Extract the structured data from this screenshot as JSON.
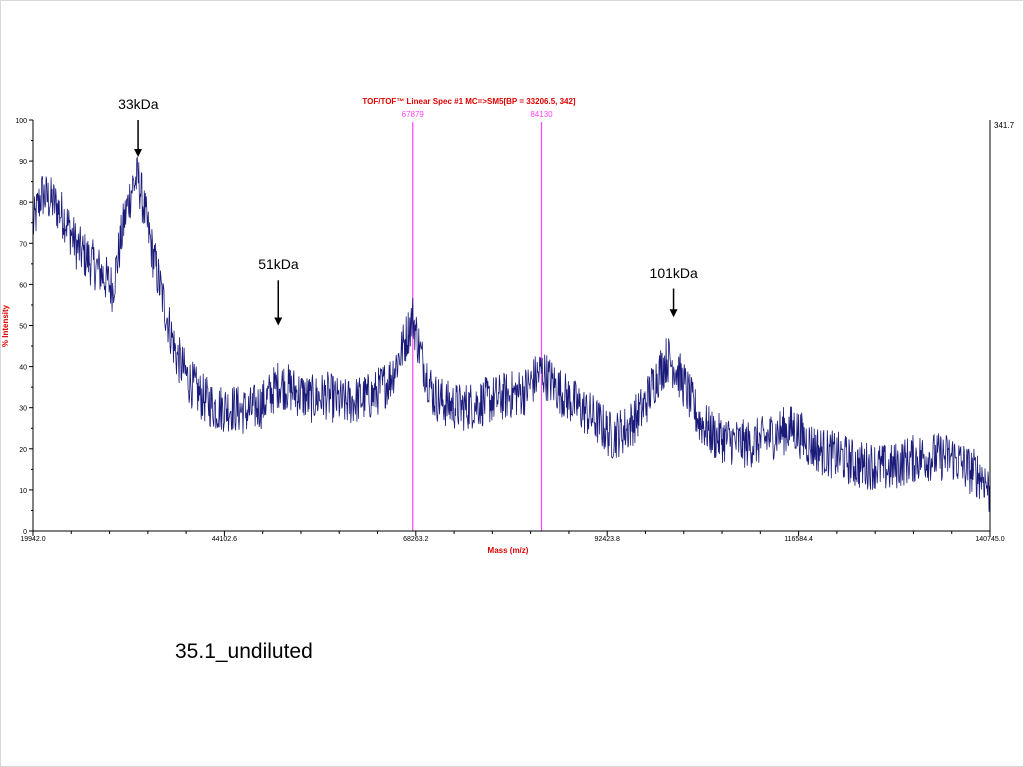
{
  "chart_data": {
    "type": "line",
    "title": "TOF/TOF™ Linear Spec #1 MC=>SM5[BP = 33206.5, 342]",
    "xlabel": "Mass (m/z)",
    "ylabel": "% Intensity",
    "xlim": [
      19942.0,
      140745.0
    ],
    "ylim": [
      0,
      100
    ],
    "x_ticks": [
      "19942.0",
      "44102.6",
      "68263.2",
      "92423.8",
      "116584.4",
      "140745.0"
    ],
    "y_ticks": [
      "0",
      "10",
      "20",
      "30",
      "40",
      "50",
      "60",
      "70",
      "80",
      "90",
      "100"
    ],
    "right_axis_label": "341.7",
    "grid": false,
    "line_color": "#1a1a7a",
    "marker_color": "#ff44ff",
    "markers": [
      {
        "x": 67879,
        "label": "67879"
      },
      {
        "x": 84130,
        "label": "84130"
      }
    ],
    "series": [
      {
        "x": [
          19942,
          21000,
          22500,
          24000,
          25500,
          27000,
          28500,
          30000,
          31500,
          32500,
          33206,
          34000,
          35000,
          36500,
          38000,
          39500,
          41000,
          43000,
          45000,
          47000,
          49000,
          51000,
          53000,
          55000,
          57000,
          59000,
          61000,
          63000,
          65000,
          66500,
          67879,
          69000,
          70500,
          72000,
          74000,
          76000,
          78000,
          80000,
          82000,
          84130,
          85500,
          87000,
          89000,
          91000,
          93000,
          95000,
          97000,
          98500,
          100000,
          101000,
          102500,
          104000,
          106000,
          108000,
          110000,
          112000,
          114000,
          116000,
          118000,
          120000,
          122000,
          124000,
          126000,
          128000,
          130000,
          132000,
          134000,
          136000,
          138000,
          140000,
          140745
        ],
        "values": [
          74,
          82,
          80,
          76,
          69,
          66,
          63,
          59,
          76,
          84,
          86,
          78,
          68,
          55,
          43,
          37,
          33,
          30,
          30,
          29,
          31,
          36,
          34,
          32,
          33,
          31,
          32,
          33,
          37,
          44,
          52,
          42,
          33,
          31,
          30,
          31,
          32,
          33,
          34,
          39,
          36,
          33,
          30,
          27,
          23,
          25,
          30,
          37,
          42,
          40,
          34,
          27,
          23,
          22,
          21,
          22,
          24,
          25,
          21,
          19,
          18,
          16,
          16,
          15,
          17,
          18,
          18,
          18,
          15,
          13,
          9
        ]
      }
    ]
  },
  "annotations": [
    {
      "label": "33kDa",
      "x": 33206,
      "arrow_top": 100,
      "arrow_bottom": 91
    },
    {
      "label": "51kDa",
      "x": 50900,
      "arrow_top": 61,
      "arrow_bottom": 50
    },
    {
      "label": "101kDa",
      "x": 100800,
      "arrow_top": 59,
      "arrow_bottom": 52
    }
  ],
  "caption": "35.1_undiluted"
}
